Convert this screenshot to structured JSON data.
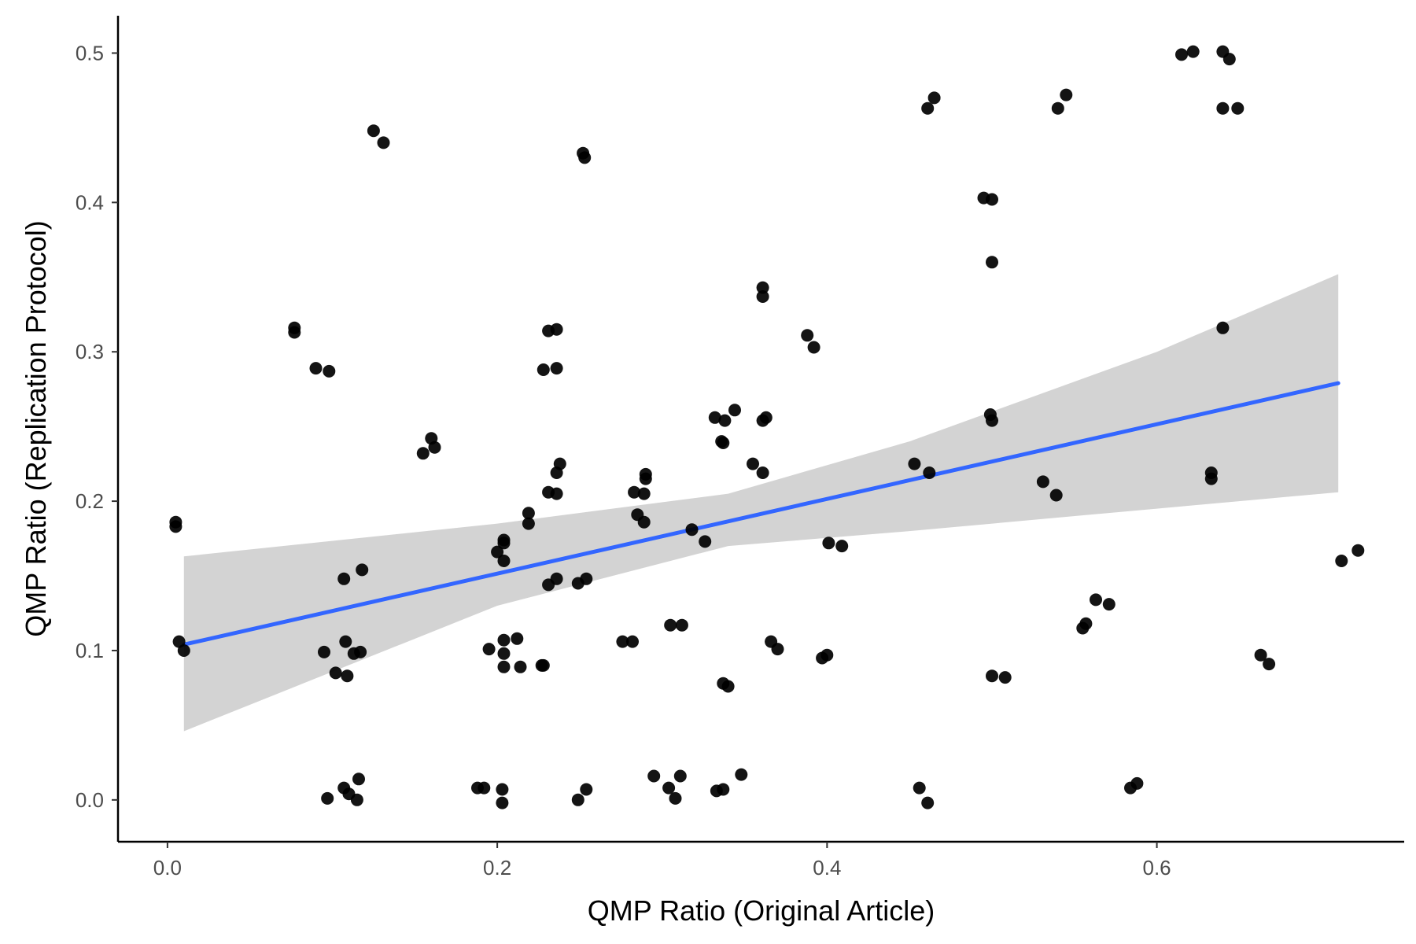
{
  "chart_data": {
    "type": "scatter",
    "title": "",
    "xlabel": "QMP Ratio (Original Article)",
    "ylabel": "QMP Ratio (Replication Protocol)",
    "xlim": [
      -0.03,
      0.75
    ],
    "ylim": [
      -0.028,
      0.525
    ],
    "x_ticks": [
      0.0,
      0.2,
      0.4,
      0.6
    ],
    "x_tick_labels": [
      "0.0",
      "0.2",
      "0.4",
      "0.6"
    ],
    "y_ticks": [
      0.0,
      0.1,
      0.2,
      0.3,
      0.4,
      0.5
    ],
    "y_tick_labels": [
      "0.0",
      "0.1",
      "0.2",
      "0.3",
      "0.4",
      "0.5"
    ],
    "grid": false,
    "legend": "none",
    "colors": {
      "points": "#000000",
      "fit_line": "#3366ff",
      "ribbon": "#d3d3d3",
      "axis": "#000000",
      "tick_text": "#4d4d4d"
    },
    "regression": {
      "method": "linear",
      "line": [
        {
          "x": 0.01,
          "y": 0.104
        },
        {
          "x": 0.71,
          "y": 0.279
        }
      ],
      "ribbon": [
        {
          "x": 0.01,
          "lower": 0.046,
          "upper": 0.163
        },
        {
          "x": 0.2,
          "lower": 0.13,
          "upper": 0.185
        },
        {
          "x": 0.34,
          "lower": 0.17,
          "upper": 0.205
        },
        {
          "x": 0.45,
          "lower": 0.18,
          "upper": 0.24
        },
        {
          "x": 0.6,
          "lower": 0.195,
          "upper": 0.3
        },
        {
          "x": 0.71,
          "lower": 0.206,
          "upper": 0.352
        }
      ]
    },
    "points": [
      {
        "x": 0.005,
        "y": 0.186
      },
      {
        "x": 0.005,
        "y": 0.183
      },
      {
        "x": 0.007,
        "y": 0.106
      },
      {
        "x": 0.01,
        "y": 0.1
      },
      {
        "x": 0.077,
        "y": 0.316
      },
      {
        "x": 0.077,
        "y": 0.313
      },
      {
        "x": 0.09,
        "y": 0.289
      },
      {
        "x": 0.098,
        "y": 0.287
      },
      {
        "x": 0.097,
        "y": 0.001
      },
      {
        "x": 0.095,
        "y": 0.099
      },
      {
        "x": 0.102,
        "y": 0.085
      },
      {
        "x": 0.107,
        "y": 0.148
      },
      {
        "x": 0.108,
        "y": 0.106
      },
      {
        "x": 0.109,
        "y": 0.083
      },
      {
        "x": 0.113,
        "y": 0.098
      },
      {
        "x": 0.117,
        "y": 0.099
      },
      {
        "x": 0.118,
        "y": 0.154
      },
      {
        "x": 0.107,
        "y": 0.008
      },
      {
        "x": 0.11,
        "y": 0.004
      },
      {
        "x": 0.115,
        "y": 0.0
      },
      {
        "x": 0.116,
        "y": 0.014
      },
      {
        "x": 0.125,
        "y": 0.448
      },
      {
        "x": 0.131,
        "y": 0.44
      },
      {
        "x": 0.155,
        "y": 0.232
      },
      {
        "x": 0.16,
        "y": 0.242
      },
      {
        "x": 0.162,
        "y": 0.236
      },
      {
        "x": 0.188,
        "y": 0.008
      },
      {
        "x": 0.192,
        "y": 0.008
      },
      {
        "x": 0.195,
        "y": 0.101
      },
      {
        "x": 0.2,
        "y": 0.166
      },
      {
        "x": 0.204,
        "y": 0.172
      },
      {
        "x": 0.204,
        "y": 0.174
      },
      {
        "x": 0.204,
        "y": 0.16
      },
      {
        "x": 0.204,
        "y": 0.107
      },
      {
        "x": 0.204,
        "y": 0.098
      },
      {
        "x": 0.204,
        "y": 0.089
      },
      {
        "x": 0.203,
        "y": 0.007
      },
      {
        "x": 0.203,
        "y": -0.002
      },
      {
        "x": 0.212,
        "y": 0.108
      },
      {
        "x": 0.214,
        "y": 0.089
      },
      {
        "x": 0.219,
        "y": 0.192
      },
      {
        "x": 0.219,
        "y": 0.185
      },
      {
        "x": 0.227,
        "y": 0.09
      },
      {
        "x": 0.228,
        "y": 0.09
      },
      {
        "x": 0.228,
        "y": 0.288
      },
      {
        "x": 0.231,
        "y": 0.314
      },
      {
        "x": 0.236,
        "y": 0.315
      },
      {
        "x": 0.236,
        "y": 0.289
      },
      {
        "x": 0.231,
        "y": 0.206
      },
      {
        "x": 0.236,
        "y": 0.205
      },
      {
        "x": 0.236,
        "y": 0.219
      },
      {
        "x": 0.238,
        "y": 0.225
      },
      {
        "x": 0.231,
        "y": 0.144
      },
      {
        "x": 0.236,
        "y": 0.148
      },
      {
        "x": 0.249,
        "y": 0.0
      },
      {
        "x": 0.254,
        "y": 0.007
      },
      {
        "x": 0.249,
        "y": 0.145
      },
      {
        "x": 0.254,
        "y": 0.148
      },
      {
        "x": 0.252,
        "y": 0.433
      },
      {
        "x": 0.253,
        "y": 0.43
      },
      {
        "x": 0.276,
        "y": 0.106
      },
      {
        "x": 0.282,
        "y": 0.106
      },
      {
        "x": 0.283,
        "y": 0.206
      },
      {
        "x": 0.285,
        "y": 0.191
      },
      {
        "x": 0.289,
        "y": 0.186
      },
      {
        "x": 0.289,
        "y": 0.205
      },
      {
        "x": 0.29,
        "y": 0.218
      },
      {
        "x": 0.29,
        "y": 0.215
      },
      {
        "x": 0.295,
        "y": 0.016
      },
      {
        "x": 0.304,
        "y": 0.008
      },
      {
        "x": 0.305,
        "y": 0.117
      },
      {
        "x": 0.308,
        "y": 0.001
      },
      {
        "x": 0.311,
        "y": 0.016
      },
      {
        "x": 0.312,
        "y": 0.117
      },
      {
        "x": 0.318,
        "y": 0.181
      },
      {
        "x": 0.326,
        "y": 0.173
      },
      {
        "x": 0.332,
        "y": 0.256
      },
      {
        "x": 0.333,
        "y": 0.006
      },
      {
        "x": 0.337,
        "y": 0.007
      },
      {
        "x": 0.336,
        "y": 0.24
      },
      {
        "x": 0.337,
        "y": 0.239
      },
      {
        "x": 0.338,
        "y": 0.254
      },
      {
        "x": 0.337,
        "y": 0.078
      },
      {
        "x": 0.34,
        "y": 0.076
      },
      {
        "x": 0.344,
        "y": 0.261
      },
      {
        "x": 0.348,
        "y": 0.017
      },
      {
        "x": 0.355,
        "y": 0.225
      },
      {
        "x": 0.361,
        "y": 0.343
      },
      {
        "x": 0.361,
        "y": 0.337
      },
      {
        "x": 0.361,
        "y": 0.254
      },
      {
        "x": 0.363,
        "y": 0.256
      },
      {
        "x": 0.361,
        "y": 0.219
      },
      {
        "x": 0.366,
        "y": 0.106
      },
      {
        "x": 0.37,
        "y": 0.101
      },
      {
        "x": 0.388,
        "y": 0.311
      },
      {
        "x": 0.392,
        "y": 0.303
      },
      {
        "x": 0.397,
        "y": 0.095
      },
      {
        "x": 0.4,
        "y": 0.097
      },
      {
        "x": 0.401,
        "y": 0.172
      },
      {
        "x": 0.409,
        "y": 0.17
      },
      {
        "x": 0.453,
        "y": 0.225
      },
      {
        "x": 0.456,
        "y": 0.008
      },
      {
        "x": 0.461,
        "y": -0.002
      },
      {
        "x": 0.461,
        "y": 0.463
      },
      {
        "x": 0.465,
        "y": 0.47
      },
      {
        "x": 0.462,
        "y": 0.219
      },
      {
        "x": 0.495,
        "y": 0.403
      },
      {
        "x": 0.5,
        "y": 0.402
      },
      {
        "x": 0.499,
        "y": 0.258
      },
      {
        "x": 0.5,
        "y": 0.254
      },
      {
        "x": 0.5,
        "y": 0.36
      },
      {
        "x": 0.5,
        "y": 0.083
      },
      {
        "x": 0.508,
        "y": 0.082
      },
      {
        "x": 0.531,
        "y": 0.213
      },
      {
        "x": 0.539,
        "y": 0.204
      },
      {
        "x": 0.54,
        "y": 0.463
      },
      {
        "x": 0.545,
        "y": 0.472
      },
      {
        "x": 0.555,
        "y": 0.115
      },
      {
        "x": 0.557,
        "y": 0.118
      },
      {
        "x": 0.563,
        "y": 0.134
      },
      {
        "x": 0.571,
        "y": 0.131
      },
      {
        "x": 0.584,
        "y": 0.008
      },
      {
        "x": 0.588,
        "y": 0.011
      },
      {
        "x": 0.615,
        "y": 0.499
      },
      {
        "x": 0.622,
        "y": 0.501
      },
      {
        "x": 0.633,
        "y": 0.219
      },
      {
        "x": 0.633,
        "y": 0.215
      },
      {
        "x": 0.64,
        "y": 0.316
      },
      {
        "x": 0.64,
        "y": 0.501
      },
      {
        "x": 0.64,
        "y": 0.463
      },
      {
        "x": 0.644,
        "y": 0.496
      },
      {
        "x": 0.649,
        "y": 0.463
      },
      {
        "x": 0.663,
        "y": 0.097
      },
      {
        "x": 0.668,
        "y": 0.091
      },
      {
        "x": 0.712,
        "y": 0.16
      },
      {
        "x": 0.722,
        "y": 0.167
      }
    ]
  }
}
